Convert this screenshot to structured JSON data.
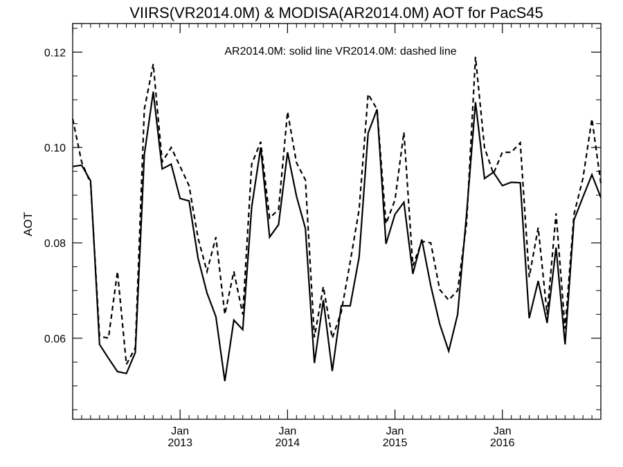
{
  "chart_data": {
    "type": "line",
    "title": "VIIRS(VR2014.0M) & MODISA(AR2014.0M)  AOT for PacS45",
    "xlabel": "",
    "ylabel": "AOT",
    "annotation": "AR2014.0M: solid line   VR2014.0M: dashed line",
    "ylim": [
      0.043,
      0.126
    ],
    "xlim": [
      "2012-01",
      "2016-12"
    ],
    "yticks": [
      0.06,
      0.08,
      0.1,
      0.12
    ],
    "ytick_labels": [
      "0.06",
      "0.08",
      "0.10",
      "0.12"
    ],
    "x_major_ticks": [
      {
        "month": "Jan",
        "year": "2013",
        "date": "2013-01"
      },
      {
        "month": "Jan",
        "year": "2014",
        "date": "2014-01"
      },
      {
        "month": "Jan",
        "year": "2015",
        "date": "2015-01"
      },
      {
        "month": "Jan",
        "year": "2016",
        "date": "2016-01"
      }
    ],
    "x": [
      "2012-01",
      "2012-02",
      "2012-03",
      "2012-04",
      "2012-05",
      "2012-06",
      "2012-07",
      "2012-08",
      "2012-09",
      "2012-10",
      "2012-11",
      "2012-12",
      "2013-01",
      "2013-02",
      "2013-03",
      "2013-04",
      "2013-05",
      "2013-06",
      "2013-07",
      "2013-08",
      "2013-09",
      "2013-10",
      "2013-11",
      "2013-12",
      "2014-01",
      "2014-02",
      "2014-03",
      "2014-04",
      "2014-05",
      "2014-06",
      "2014-07",
      "2014-08",
      "2014-09",
      "2014-10",
      "2014-11",
      "2014-12",
      "2015-01",
      "2015-02",
      "2015-03",
      "2015-04",
      "2015-05",
      "2015-06",
      "2015-07",
      "2015-08",
      "2015-09",
      "2015-10",
      "2015-11",
      "2015-12",
      "2016-01",
      "2016-02",
      "2016-03",
      "2016-04",
      "2016-05",
      "2016-06",
      "2016-07",
      "2016-08",
      "2016-09",
      "2016-10",
      "2016-11",
      "2016-12"
    ],
    "series": [
      {
        "name": "AR2014.0M",
        "style": "solid",
        "color": "#000000",
        "values": [
          0.096,
          0.0963,
          0.093,
          0.0587,
          0.0558,
          0.053,
          0.0526,
          0.057,
          0.0985,
          0.1117,
          0.0955,
          0.0965,
          0.0893,
          0.0888,
          0.0768,
          0.0695,
          0.0645,
          0.051,
          0.0638,
          0.0618,
          0.0875,
          0.1,
          0.0812,
          0.0838,
          0.099,
          0.0898,
          0.083,
          0.0548,
          0.068,
          0.0531,
          0.0668,
          0.0668,
          0.077,
          0.103,
          0.108,
          0.0798,
          0.086,
          0.0885,
          0.0735,
          0.0807,
          0.071,
          0.063,
          0.0573,
          0.065,
          0.086,
          0.1095,
          0.0935,
          0.0948,
          0.092,
          0.0927,
          0.0926,
          0.0642,
          0.072,
          0.0632,
          0.079,
          0.0587,
          0.0848,
          0.0896,
          0.0943,
          0.0895
        ]
      },
      {
        "name": "VR2014.0M",
        "style": "dashed",
        "color": "#000000",
        "values": [
          0.106,
          0.097,
          0.0925,
          0.0604,
          0.06,
          0.074,
          0.0545,
          0.058,
          0.108,
          0.1175,
          0.097,
          0.1,
          0.096,
          0.092,
          0.081,
          0.074,
          0.0812,
          0.065,
          0.074,
          0.065,
          0.0965,
          0.1012,
          0.0852,
          0.087,
          0.1075,
          0.0968,
          0.0932,
          0.0602,
          0.0708,
          0.06,
          0.0655,
          0.076,
          0.087,
          0.1112,
          0.108,
          0.084,
          0.089,
          0.1032,
          0.0752,
          0.0803,
          0.08,
          0.0702,
          0.068,
          0.07,
          0.084,
          0.119,
          0.1,
          0.0945,
          0.099,
          0.099,
          0.101,
          0.0728,
          0.0832,
          0.065,
          0.0862,
          0.062,
          0.086,
          0.0935,
          0.106,
          0.0925
        ]
      }
    ]
  }
}
